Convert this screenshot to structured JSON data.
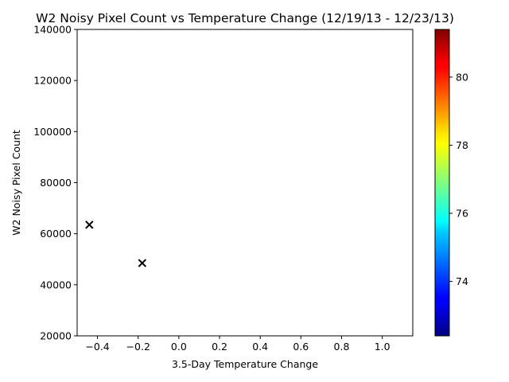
{
  "chart_data": {
    "type": "scatter",
    "title": "W2 Noisy Pixel Count vs Temperature Change (12/19/13 - 12/23/13)",
    "xlabel": "3.5-Day Temperature Change",
    "ylabel": "W2 Noisy Pixel Count",
    "xlim": [
      -0.5,
      1.15
    ],
    "ylim": [
      20000,
      140000
    ],
    "xticks": [
      -0.4,
      -0.2,
      0.0,
      0.2,
      0.4,
      0.6,
      0.8,
      1.0
    ],
    "xtick_labels": [
      "−0.4",
      "−0.2",
      "0.0",
      "0.2",
      "0.4",
      "0.6",
      "0.8",
      "1.0"
    ],
    "yticks": [
      20000,
      40000,
      60000,
      80000,
      100000,
      120000,
      140000
    ],
    "ytick_labels": [
      "20000",
      "40000",
      "60000",
      "80000",
      "100000",
      "120000",
      "140000"
    ],
    "marker": "x",
    "marker_color": "#000000",
    "points": [
      {
        "x": -0.44,
        "y": 63500
      },
      {
        "x": -0.18,
        "y": 48500
      }
    ],
    "colorbar": {
      "colormap": "jet",
      "range": [
        72.4,
        81.4
      ],
      "ticks": [
        74,
        76,
        78,
        80
      ],
      "tick_labels": [
        "74",
        "76",
        "78",
        "80"
      ]
    },
    "grid": false
  }
}
